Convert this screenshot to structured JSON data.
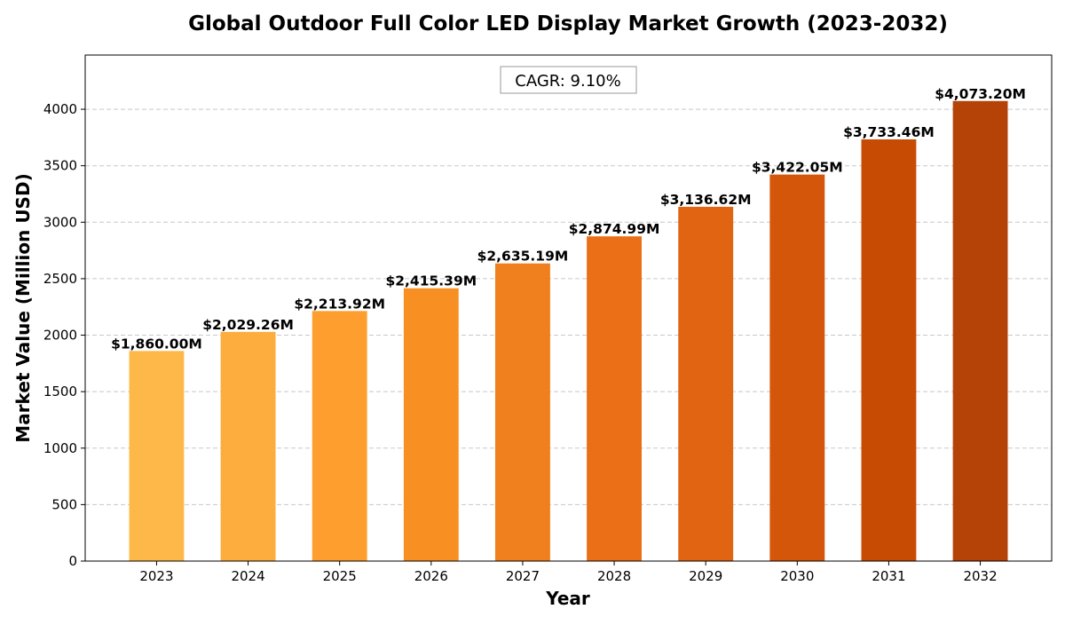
{
  "chart_data": {
    "type": "bar",
    "title": "Global Outdoor Full Color LED Display Market Growth (2023-2032)",
    "xlabel": "Year",
    "ylabel": "Market Value (Million USD)",
    "annotation": "CAGR: 9.10%",
    "categories": [
      "2023",
      "2024",
      "2025",
      "2026",
      "2027",
      "2028",
      "2029",
      "2030",
      "2031",
      "2032"
    ],
    "values": [
      1860.0,
      2029.26,
      2213.92,
      2415.39,
      2635.19,
      2874.99,
      3136.62,
      3422.05,
      3733.46,
      4073.2
    ],
    "data_labels": [
      "$1,860.00M",
      "$2,029.26M",
      "$2,213.92M",
      "$2,415.39M",
      "$2,635.19M",
      "$2,874.99M",
      "$3,136.62M",
      "$3,422.05M",
      "$3,733.46M",
      "$4,073.20M"
    ],
    "colors": [
      "#FEB84A",
      "#FDAC3E",
      "#FE9E2F",
      "#F88F22",
      "#F07F1E",
      "#EA6F17",
      "#E06411",
      "#D4560A",
      "#C74B03",
      "#B54207"
    ],
    "yticks": [
      0,
      500,
      1000,
      1500,
      2000,
      2500,
      3000,
      3500,
      4000
    ],
    "ylim": [
      0,
      4480
    ],
    "grid": "y-dashed",
    "legend": "none"
  }
}
